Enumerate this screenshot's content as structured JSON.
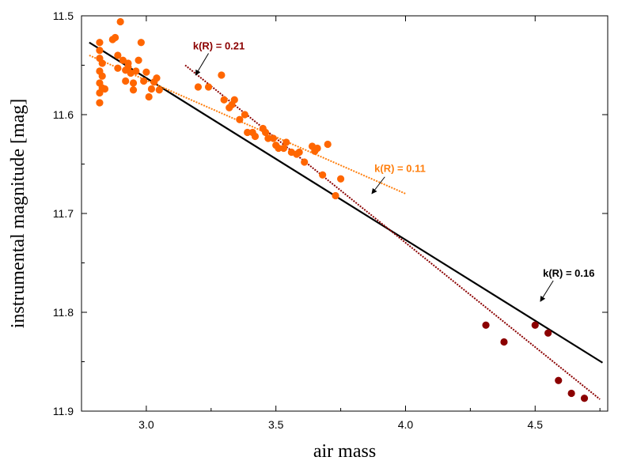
{
  "chart_data": {
    "type": "scatter",
    "xlabel": "air mass",
    "ylabel": "instrumental magnitude [mag]",
    "xlim": [
      2.75,
      4.78
    ],
    "ylim": [
      11.9,
      11.5
    ],
    "y_inverted": true,
    "grid": false,
    "x_ticks": [
      "3.0",
      "3.5",
      "4.0",
      "4.5"
    ],
    "y_ticks": [
      "11.5",
      "11.6",
      "11.7",
      "11.8",
      "11.9"
    ],
    "colors": {
      "orange": "#ff6600",
      "dark_red": "#8b0000",
      "black": "#000000",
      "fit_orange": "#ff7f0e"
    },
    "series": [
      {
        "color": "#ff6600",
        "points": [
          [
            2.82,
            11.527
          ],
          [
            2.82,
            11.535
          ],
          [
            2.82,
            11.543
          ],
          [
            2.83,
            11.548
          ],
          [
            2.82,
            11.556
          ],
          [
            2.83,
            11.561
          ],
          [
            2.82,
            11.568
          ],
          [
            2.83,
            11.573
          ],
          [
            2.82,
            11.578
          ],
          [
            2.82,
            11.588
          ],
          [
            2.84,
            11.574
          ],
          [
            2.87,
            11.524
          ],
          [
            2.88,
            11.522
          ],
          [
            2.9,
            11.506
          ],
          [
            2.89,
            11.54
          ],
          [
            2.91,
            11.545
          ],
          [
            2.92,
            11.555
          ],
          [
            2.89,
            11.553
          ],
          [
            2.93,
            11.548
          ],
          [
            2.93,
            11.552
          ],
          [
            2.94,
            11.558
          ],
          [
            2.95,
            11.568
          ],
          [
            2.96,
            11.556
          ],
          [
            2.97,
            11.545
          ],
          [
            2.98,
            11.527
          ],
          [
            2.99,
            11.566
          ],
          [
            3.0,
            11.557
          ],
          [
            2.92,
            11.566
          ],
          [
            3.01,
            11.582
          ],
          [
            3.02,
            11.574
          ],
          [
            3.03,
            11.567
          ],
          [
            3.04,
            11.563
          ],
          [
            3.05,
            11.575
          ],
          [
            2.95,
            11.575
          ],
          [
            3.2,
            11.572
          ],
          [
            3.24,
            11.572
          ],
          [
            3.29,
            11.56
          ],
          [
            3.3,
            11.585
          ],
          [
            3.32,
            11.593
          ],
          [
            3.33,
            11.59
          ],
          [
            3.34,
            11.585
          ],
          [
            3.36,
            11.605
          ],
          [
            3.38,
            11.6
          ],
          [
            3.39,
            11.618
          ],
          [
            3.41,
            11.618
          ],
          [
            3.42,
            11.622
          ],
          [
            3.45,
            11.614
          ],
          [
            3.46,
            11.618
          ],
          [
            3.47,
            11.624
          ],
          [
            3.49,
            11.624
          ],
          [
            3.5,
            11.631
          ],
          [
            3.51,
            11.634
          ],
          [
            3.53,
            11.634
          ],
          [
            3.54,
            11.628
          ],
          [
            3.56,
            11.638
          ],
          [
            3.58,
            11.64
          ],
          [
            3.59,
            11.638
          ],
          [
            3.61,
            11.648
          ],
          [
            3.64,
            11.632
          ],
          [
            3.65,
            11.637
          ],
          [
            3.66,
            11.634
          ],
          [
            3.68,
            11.661
          ],
          [
            3.7,
            11.63
          ],
          [
            3.73,
            11.682
          ],
          [
            3.75,
            11.665
          ]
        ]
      },
      {
        "color": "#8b0000",
        "points": [
          [
            4.31,
            11.813
          ],
          [
            4.38,
            11.83
          ],
          [
            4.5,
            11.813
          ],
          [
            4.55,
            11.821
          ],
          [
            4.59,
            11.869
          ],
          [
            4.64,
            11.882
          ],
          [
            4.69,
            11.887
          ]
        ]
      }
    ],
    "fits": [
      {
        "label": "k(R) = 0.16",
        "color": "#000000",
        "style": "solid",
        "x": [
          2.78,
          4.76
        ],
        "y": [
          11.527,
          11.851
        ]
      },
      {
        "label": "k(R) = 0.11",
        "color": "#ff7f0e",
        "style": "dotted",
        "x": [
          2.78,
          4.0
        ],
        "y": [
          11.54,
          11.68
        ]
      },
      {
        "label": "k(R) = 0.21",
        "color": "#8b0000",
        "style": "dotted",
        "x": [
          3.15,
          4.75
        ],
        "y": [
          11.55,
          11.888
        ]
      }
    ]
  }
}
